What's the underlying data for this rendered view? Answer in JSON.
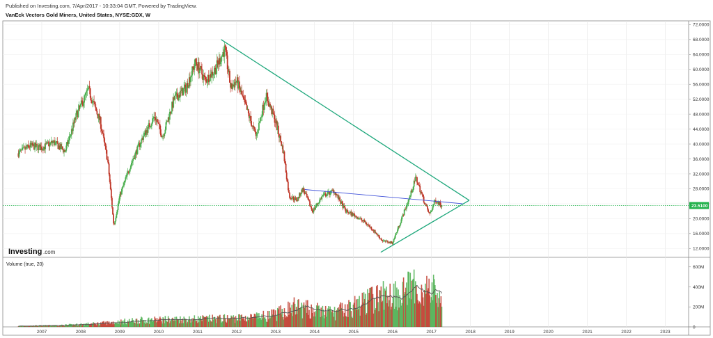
{
  "header": {
    "published": "Published on Investing.com, 7/Apr/2017 - 10:33:04 GMT, Powered by TradingView.",
    "title": "VanEck Vectors Gold Miners, United States, NYSE:GDX, W"
  },
  "logo": {
    "main": "Investing",
    "sub": ".com"
  },
  "colors": {
    "up": "#4caf50",
    "down": "#c0392b",
    "triangle": "#1fa87c",
    "resistance": "#3f51d9",
    "last_price_line": "#22b14c",
    "ma": "#555555"
  },
  "chart_data": [
    {
      "type": "candlestick",
      "name": "price",
      "x_ticks": [
        "2007",
        "2008",
        "2009",
        "2010",
        "2011",
        "2012",
        "2013",
        "2014",
        "2015",
        "2016",
        "2017",
        "2018",
        "2019",
        "2020",
        "2021",
        "2022",
        "2023"
      ],
      "xlim": [
        2006.0,
        2023.6
      ],
      "y_ticks": [
        "72.0000",
        "68.0000",
        "64.0000",
        "60.0000",
        "56.0000",
        "52.0000",
        "48.0000",
        "44.0000",
        "40.0000",
        "36.0000",
        "32.0000",
        "28.0000",
        "24.0000",
        "20.0000",
        "16.0000",
        "12.0000"
      ],
      "ylim": [
        10,
        73
      ],
      "last_price": "23.5100",
      "key_points": [
        {
          "date": 2006.4,
          "close": 37.5
        },
        {
          "date": 2006.7,
          "close": 39.5
        },
        {
          "date": 2007.0,
          "close": 39.0
        },
        {
          "date": 2007.3,
          "close": 40.5
        },
        {
          "date": 2007.6,
          "close": 38.0
        },
        {
          "date": 2007.9,
          "close": 48.0
        },
        {
          "date": 2008.2,
          "close": 54.5
        },
        {
          "date": 2008.5,
          "close": 46.0
        },
        {
          "date": 2008.7,
          "close": 35.0
        },
        {
          "date": 2008.85,
          "close": 18.0
        },
        {
          "date": 2009.0,
          "close": 26.0
        },
        {
          "date": 2009.3,
          "close": 35.0
        },
        {
          "date": 2009.6,
          "close": 42.0
        },
        {
          "date": 2009.9,
          "close": 47.5
        },
        {
          "date": 2010.1,
          "close": 42.0
        },
        {
          "date": 2010.4,
          "close": 52.0
        },
        {
          "date": 2010.7,
          "close": 55.0
        },
        {
          "date": 2010.95,
          "close": 62.0
        },
        {
          "date": 2011.2,
          "close": 57.0
        },
        {
          "date": 2011.45,
          "close": 60.0
        },
        {
          "date": 2011.7,
          "close": 65.5
        },
        {
          "date": 2011.85,
          "close": 55.0
        },
        {
          "date": 2012.0,
          "close": 57.0
        },
        {
          "date": 2012.3,
          "close": 48.0
        },
        {
          "date": 2012.5,
          "close": 42.0
        },
        {
          "date": 2012.75,
          "close": 53.0
        },
        {
          "date": 2013.0,
          "close": 46.0
        },
        {
          "date": 2013.2,
          "close": 38.0
        },
        {
          "date": 2013.35,
          "close": 26.0
        },
        {
          "date": 2013.55,
          "close": 25.0
        },
        {
          "date": 2013.7,
          "close": 28.0
        },
        {
          "date": 2013.95,
          "close": 22.0
        },
        {
          "date": 2014.2,
          "close": 26.0
        },
        {
          "date": 2014.5,
          "close": 27.5
        },
        {
          "date": 2014.8,
          "close": 22.0
        },
        {
          "date": 2015.0,
          "close": 21.0
        },
        {
          "date": 2015.3,
          "close": 19.0
        },
        {
          "date": 2015.5,
          "close": 17.0
        },
        {
          "date": 2015.75,
          "close": 14.0
        },
        {
          "date": 2016.0,
          "close": 13.5
        },
        {
          "date": 2016.2,
          "close": 19.0
        },
        {
          "date": 2016.45,
          "close": 26.0
        },
        {
          "date": 2016.6,
          "close": 31.0
        },
        {
          "date": 2016.8,
          "close": 25.0
        },
        {
          "date": 2016.95,
          "close": 21.0
        },
        {
          "date": 2017.1,
          "close": 25.0
        },
        {
          "date": 2017.27,
          "close": 23.5
        }
      ],
      "lines": [
        {
          "name": "upper-trendline",
          "from": {
            "date": 2011.6,
            "price": 68.0
          },
          "to": {
            "date": 2017.97,
            "price": 24.9
          }
        },
        {
          "name": "lower-trendline",
          "from": {
            "date": 2015.7,
            "price": 11.0
          },
          "to": {
            "date": 2017.97,
            "price": 24.9
          }
        },
        {
          "name": "resistance-line",
          "from": {
            "date": 2013.75,
            "price": 27.8
          },
          "to": {
            "date": 2017.8,
            "price": 24.0
          }
        }
      ]
    },
    {
      "type": "bar",
      "name": "volume",
      "label": "Volume (true, 20)",
      "y_ticks": [
        "600M",
        "400M",
        "200M",
        "0"
      ],
      "ylim": [
        0,
        640
      ],
      "key_points": [
        {
          "date": 2006.4,
          "volume": 8
        },
        {
          "date": 2007.5,
          "volume": 15
        },
        {
          "date": 2008.5,
          "volume": 35
        },
        {
          "date": 2009.5,
          "volume": 65
        },
        {
          "date": 2010.5,
          "volume": 75
        },
        {
          "date": 2011.5,
          "volume": 80
        },
        {
          "date": 2012.5,
          "volume": 95
        },
        {
          "date": 2013.0,
          "volume": 120
        },
        {
          "date": 2013.5,
          "volume": 200
        },
        {
          "date": 2014.0,
          "volume": 160
        },
        {
          "date": 2014.5,
          "volume": 140
        },
        {
          "date": 2015.0,
          "volume": 200
        },
        {
          "date": 2015.5,
          "volume": 280
        },
        {
          "date": 2016.0,
          "volume": 330
        },
        {
          "date": 2016.5,
          "volume": 380
        },
        {
          "date": 2017.0,
          "volume": 360
        },
        {
          "date": 2017.27,
          "volume": 300
        }
      ]
    }
  ]
}
